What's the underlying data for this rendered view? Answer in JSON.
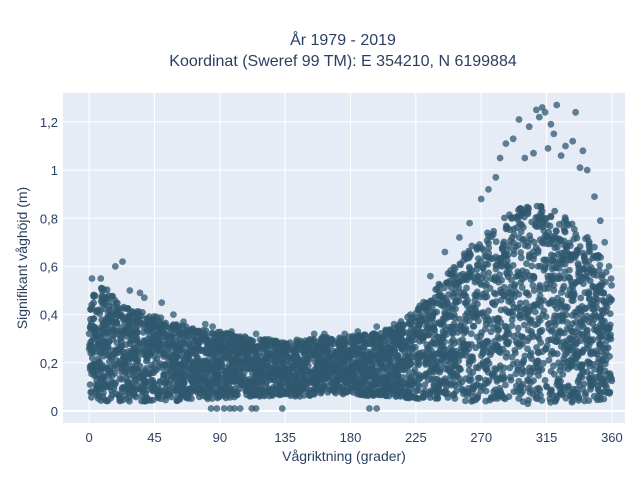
{
  "chart_data": {
    "type": "scatter",
    "title_line1": "År 1979 - 2019",
    "title_line2": "Koordinat (Sweref 99 TM): E 354210, N 6199884",
    "xlabel": "Vågriktning (grader)",
    "ylabel": "Signifikant våghöjd (m)",
    "xlim": [
      -18,
      369
    ],
    "ylim": [
      -0.05,
      1.32
    ],
    "x_ticks": [
      0,
      45,
      90,
      135,
      180,
      225,
      270,
      315,
      360
    ],
    "x_tick_labels": [
      "0",
      "45",
      "90",
      "135",
      "180",
      "225",
      "270",
      "315",
      "360"
    ],
    "y_ticks": [
      0,
      0.2,
      0.4,
      0.6,
      0.8,
      1,
      1.2
    ],
    "y_tick_labels": [
      "0",
      "0,2",
      "0,4",
      "0,6",
      "0,8",
      "1",
      "1,2"
    ],
    "grid": true,
    "legend": "none",
    "colors": {
      "marker": "#2f5870",
      "plot_bg": "#e5ecf6",
      "grid": "#ffffff",
      "text": "#2a3f5f"
    },
    "series": [
      {
        "x": [
          0,
          10,
          20,
          30,
          45,
          60,
          75,
          90,
          105,
          120,
          135,
          150,
          165,
          180,
          195,
          210,
          225,
          240,
          255,
          270,
          285,
          300,
          315,
          330,
          345,
          360
        ],
        "upper": [
          0.5,
          0.52,
          0.45,
          0.43,
          0.4,
          0.36,
          0.34,
          0.33,
          0.31,
          0.3,
          0.29,
          0.3,
          0.31,
          0.31,
          0.32,
          0.35,
          0.42,
          0.52,
          0.64,
          0.72,
          0.8,
          0.86,
          0.85,
          0.8,
          0.72,
          0.55
        ],
        "lower": [
          0.05,
          0.04,
          0.04,
          0.04,
          0.04,
          0.04,
          0.05,
          0.05,
          0.06,
          0.06,
          0.06,
          0.06,
          0.07,
          0.07,
          0.06,
          0.06,
          0.05,
          0.05,
          0.04,
          0.04,
          0.03,
          0.03,
          0.03,
          0.03,
          0.04,
          0.05
        ],
        "outliers": [
          [
            2,
            0.55
          ],
          [
            8,
            0.55
          ],
          [
            18,
            0.6
          ],
          [
            23,
            0.62
          ],
          [
            28,
            0.5
          ],
          [
            35,
            0.49
          ],
          [
            38,
            0.47
          ],
          [
            50,
            0.45
          ],
          [
            58,
            0.4
          ],
          [
            65,
            0.37
          ],
          [
            80,
            0.36
          ],
          [
            85,
            0.35
          ],
          [
            98,
            0.33
          ],
          [
            115,
            0.32
          ],
          [
            155,
            0.32
          ],
          [
            162,
            0.32
          ],
          [
            176,
            0.32
          ],
          [
            185,
            0.33
          ],
          [
            198,
            0.35
          ],
          [
            210,
            0.36
          ],
          [
            235,
            0.56
          ],
          [
            245,
            0.66
          ],
          [
            255,
            0.72
          ],
          [
            262,
            0.78
          ],
          [
            270,
            0.88
          ],
          [
            275,
            0.92
          ],
          [
            280,
            0.97
          ],
          [
            283,
            1.05
          ],
          [
            287,
            1.11
          ],
          [
            292,
            1.13
          ],
          [
            296,
            1.21
          ],
          [
            300,
            1.05
          ],
          [
            303,
            1.18
          ],
          [
            306,
            1.07
          ],
          [
            308,
            1.25
          ],
          [
            310,
            1.22
          ],
          [
            312,
            1.26
          ],
          [
            314,
            1.24
          ],
          [
            316,
            1.09
          ],
          [
            318,
            1.19
          ],
          [
            320,
            1.15
          ],
          [
            322,
            1.27
          ],
          [
            325,
            1.06
          ],
          [
            328,
            1.1
          ],
          [
            333,
            1.12
          ],
          [
            335,
            1.24
          ],
          [
            338,
            1.01
          ],
          [
            340,
            1.08
          ],
          [
            343,
            1.0
          ],
          [
            348,
            0.89
          ],
          [
            352,
            0.79
          ],
          [
            355,
            0.7
          ],
          [
            358,
            0.6
          ],
          [
            84,
            0.01
          ],
          [
            88,
            0.01
          ],
          [
            93,
            0.01
          ],
          [
            97,
            0.01
          ],
          [
            100,
            0.01
          ],
          [
            104,
            0.01
          ],
          [
            112,
            0.01
          ],
          [
            115,
            0.01
          ],
          [
            133,
            0.01
          ],
          [
            193,
            0.01
          ],
          [
            198,
            0.01
          ]
        ]
      }
    ]
  }
}
